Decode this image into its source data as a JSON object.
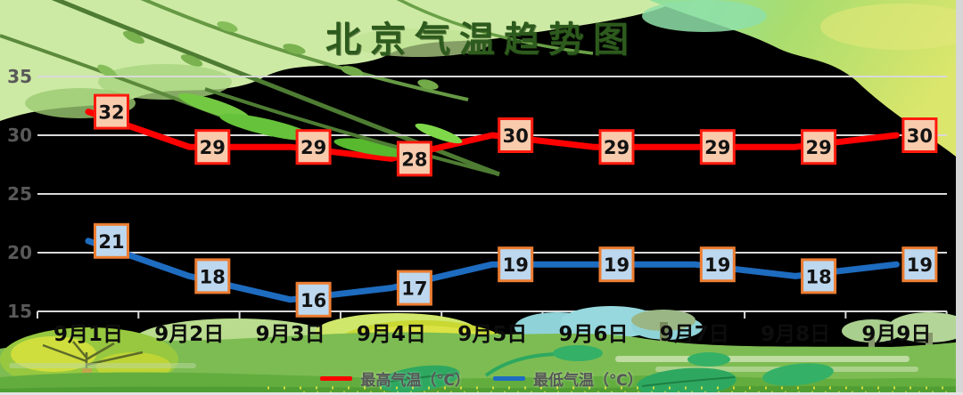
{
  "title": "北京气温趋势图",
  "axis": {
    "y_ticks": [
      35,
      30,
      25,
      20,
      15
    ],
    "x_labels": [
      "9月1日",
      "9月2日",
      "9月3日",
      "9月4日",
      "9月5日",
      "9月6日",
      "9月7日",
      "9月8日",
      "9月9日"
    ]
  },
  "legend": [
    {
      "label": "最高气温（℃）",
      "color": "#fe0000"
    },
    {
      "label": "最低气温（℃）",
      "color": "#1e6cc0"
    }
  ],
  "colors": {
    "plot_bg": "#000000",
    "gridline": "#d9d9d9",
    "y_tick_text": "#595959",
    "x_label_text": "#0d0d0d",
    "title_text": "#2d5a1d"
  },
  "chart_data": {
    "type": "line",
    "title": "北京气温趋势图",
    "categories": [
      "9月1日",
      "9月2日",
      "9月3日",
      "9月4日",
      "9月5日",
      "9月6日",
      "9月7日",
      "9月8日",
      "9月9日"
    ],
    "series": [
      {
        "name": "最高气温（℃）",
        "color": "#fe0000",
        "label_fill": "#f8cbad",
        "label_border": "#ff1a0e",
        "values": [
          32,
          29,
          29,
          28,
          30,
          29,
          29,
          29,
          30
        ]
      },
      {
        "name": "最低气温（℃）",
        "color": "#1e6cc0",
        "label_fill": "#bdd7ee",
        "label_border": "#ed7d31",
        "values": [
          21,
          18,
          16,
          17,
          19,
          19,
          19,
          18,
          19
        ]
      }
    ],
    "ylim": [
      15,
      35
    ],
    "y_step": 5,
    "grid": true,
    "data_labels": true,
    "legend_position": "bottom"
  }
}
